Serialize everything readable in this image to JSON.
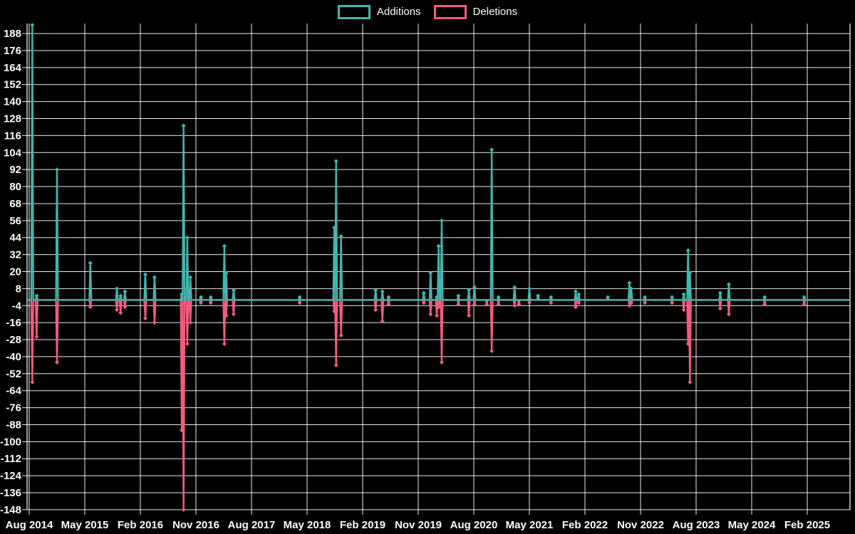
{
  "legend": {
    "items": [
      {
        "label": "Additions",
        "color": "#45b5ad"
      },
      {
        "label": "Deletions",
        "color": "#f25c7f"
      }
    ]
  },
  "chart_data": {
    "type": "line",
    "title": "",
    "xlabel": "",
    "ylabel": "",
    "background_color": "#000000",
    "grid": true,
    "grid_color": "#ffffff",
    "legend_position": "top-center",
    "x_axis": {
      "start_label": "Aug 2014",
      "tick_interval_months": 9,
      "tick_labels": [
        "Aug 2014",
        "May 2015",
        "Feb 2016",
        "Nov 2016",
        "Aug 2017",
        "May 2018",
        "Feb 2019",
        "Nov 2019",
        "Aug 2020",
        "May 2021",
        "Feb 2022",
        "Nov 2022",
        "Aug 2023",
        "May 2024",
        "Feb 2025"
      ]
    },
    "y_axis": {
      "min": -148,
      "max": 188,
      "step": 12
    },
    "series": [
      {
        "name": "Additions",
        "color": "#45b5ad",
        "key": "add",
        "direction": "positive"
      },
      {
        "name": "Deletions",
        "color": "#f25c7f",
        "key": "del",
        "direction": "negative"
      }
    ],
    "points_note": "m = months after Aug 2014; all other weeks are 0 for both series",
    "points": [
      {
        "m": 0.5,
        "date": "Aug 2014",
        "add": 194,
        "del": -58
      },
      {
        "m": 1.2,
        "date": "Sep 2014",
        "add": 3,
        "del": -26
      },
      {
        "m": 4.5,
        "date": "Dec 2014",
        "add": 92,
        "del": -44
      },
      {
        "m": 9.9,
        "date": "Jun 2015",
        "add": 26,
        "del": -5
      },
      {
        "m": 14.2,
        "date": "Oct 2015",
        "add": 8,
        "del": -7
      },
      {
        "m": 14.8,
        "date": "Oct 2015",
        "add": 3,
        "del": -9
      },
      {
        "m": 15.5,
        "date": "Nov 2015",
        "add": 6,
        "del": -5
      },
      {
        "m": 18.8,
        "date": "Feb 2016",
        "add": 18,
        "del": -13
      },
      {
        "m": 20.3,
        "date": "Apr 2016",
        "add": 16,
        "del": -16
      },
      {
        "m": 24.7,
        "date": "Aug 2016",
        "add": 4,
        "del": -92
      },
      {
        "m": 25.0,
        "date": "Sep 2016",
        "add": 123,
        "del": -148
      },
      {
        "m": 25.6,
        "date": "Sep 2016",
        "add": 44,
        "del": -31
      },
      {
        "m": 26.1,
        "date": "Oct 2016",
        "add": 16,
        "del": -16
      },
      {
        "m": 27.8,
        "date": "Nov 2016",
        "add": 2,
        "del": -2
      },
      {
        "m": 29.4,
        "date": "Jan 2017",
        "add": 2,
        "del": -2
      },
      {
        "m": 31.6,
        "date": "Mar 2017",
        "add": 38,
        "del": -31
      },
      {
        "m": 31.9,
        "date": "Mar 2017",
        "add": 19,
        "del": -11
      },
      {
        "m": 33.1,
        "date": "May 2017",
        "add": 7,
        "del": -10
      },
      {
        "m": 43.8,
        "date": "Mar 2018",
        "add": 2,
        "del": -2
      },
      {
        "m": 49.4,
        "date": "Sep 2018",
        "add": 51,
        "del": -8
      },
      {
        "m": 49.7,
        "date": "Sep 2018",
        "add": 98,
        "del": -46
      },
      {
        "m": 50.5,
        "date": "Oct 2018",
        "add": 45,
        "del": -25
      },
      {
        "m": 56.1,
        "date": "Apr 2019",
        "add": 7,
        "del": -7
      },
      {
        "m": 57.2,
        "date": "May 2019",
        "add": 6,
        "del": -15
      },
      {
        "m": 58.2,
        "date": "Jun 2019",
        "add": 2,
        "del": -3
      },
      {
        "m": 63.9,
        "date": "Nov 2019",
        "add": 5,
        "del": -2
      },
      {
        "m": 65.0,
        "date": "Jan 2020",
        "add": 19,
        "del": -10
      },
      {
        "m": 66.0,
        "date": "Feb 2020",
        "add": 2,
        "del": -11
      },
      {
        "m": 66.3,
        "date": "Feb 2020",
        "add": 38,
        "del": -5
      },
      {
        "m": 66.8,
        "date": "Mar 2020",
        "add": 56,
        "del": -44
      },
      {
        "m": 69.5,
        "date": "May 2020",
        "add": 3,
        "del": -3
      },
      {
        "m": 71.2,
        "date": "Jul 2020",
        "add": 7,
        "del": -11
      },
      {
        "m": 72.1,
        "date": "Aug 2020",
        "add": 9,
        "del": -3
      },
      {
        "m": 74.1,
        "date": "Oct 2020",
        "add": 0,
        "del": -3
      },
      {
        "m": 74.9,
        "date": "Nov 2020",
        "add": 106,
        "del": -36
      },
      {
        "m": 76.0,
        "date": "Dec 2020",
        "add": 2,
        "del": -3
      },
      {
        "m": 78.6,
        "date": "Feb 2021",
        "add": 9,
        "del": -4
      },
      {
        "m": 79.3,
        "date": "Mar 2021",
        "add": 0,
        "del": -3
      },
      {
        "m": 81.0,
        "date": "May 2021",
        "add": 8,
        "del": -2
      },
      {
        "m": 82.4,
        "date": "Jun 2021",
        "add": 3,
        "del": 0
      },
      {
        "m": 84.5,
        "date": "Aug 2021",
        "add": 2,
        "del": -2
      },
      {
        "m": 88.5,
        "date": "Dec 2021",
        "add": 6,
        "del": -5
      },
      {
        "m": 89.0,
        "date": "Jan 2022",
        "add": 4,
        "del": -2
      },
      {
        "m": 93.7,
        "date": "May 2022",
        "add": 2,
        "del": 0
      },
      {
        "m": 97.2,
        "date": "Sep 2022",
        "add": 12,
        "del": -4
      },
      {
        "m": 97.5,
        "date": "Sep 2022",
        "add": 8,
        "del": -2
      },
      {
        "m": 99.7,
        "date": "Nov 2022",
        "add": 2,
        "del": -2
      },
      {
        "m": 104.1,
        "date": "Apr 2023",
        "add": 2,
        "del": -2
      },
      {
        "m": 106.0,
        "date": "Jun 2023",
        "add": 4,
        "del": -7
      },
      {
        "m": 106.7,
        "date": "Jul 2023",
        "add": 35,
        "del": -31
      },
      {
        "m": 107.0,
        "date": "Jul 2023",
        "add": 19,
        "del": -58
      },
      {
        "m": 111.9,
        "date": "Dec 2023",
        "add": 5,
        "del": -6
      },
      {
        "m": 113.3,
        "date": "Jan 2024",
        "add": 11,
        "del": -10
      },
      {
        "m": 119.1,
        "date": "Jul 2024",
        "add": 2,
        "del": -3
      },
      {
        "m": 125.5,
        "date": "Jan 2025",
        "add": 2,
        "del": -3
      }
    ]
  }
}
